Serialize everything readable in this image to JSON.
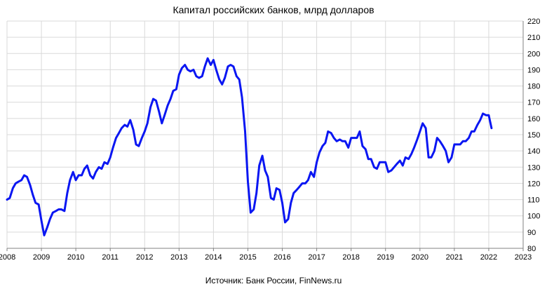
{
  "chart_data": {
    "type": "line",
    "title": "Капитал российских банков, млрд долларов",
    "source": "Источник: Банк России, FinNews.ru",
    "xlabel": "",
    "ylabel": "",
    "xlim": [
      2008,
      2023
    ],
    "ylim": [
      80,
      220
    ],
    "x_ticks": [
      "2008",
      "2009",
      "2010",
      "2011",
      "2012",
      "2013",
      "2014",
      "2015",
      "2016",
      "2017",
      "2018",
      "2019",
      "2020",
      "2021",
      "2022",
      "2023"
    ],
    "y_ticks": [
      "80",
      "90",
      "100",
      "110",
      "120",
      "130",
      "140",
      "150",
      "160",
      "170",
      "180",
      "190",
      "200",
      "210",
      "220"
    ],
    "grid": true,
    "legend": "none",
    "series": [
      {
        "color": "#0a16f2",
        "points": [
          [
            2008.0,
            110
          ],
          [
            2008.08,
            111
          ],
          [
            2008.17,
            117
          ],
          [
            2008.25,
            120
          ],
          [
            2008.33,
            121
          ],
          [
            2008.42,
            122
          ],
          [
            2008.5,
            125
          ],
          [
            2008.58,
            124
          ],
          [
            2008.67,
            119
          ],
          [
            2008.75,
            113
          ],
          [
            2008.83,
            108
          ],
          [
            2008.92,
            107
          ],
          [
            2009.0,
            97
          ],
          [
            2009.08,
            88
          ],
          [
            2009.17,
            93
          ],
          [
            2009.25,
            98
          ],
          [
            2009.33,
            102
          ],
          [
            2009.42,
            103
          ],
          [
            2009.5,
            104
          ],
          [
            2009.58,
            104
          ],
          [
            2009.67,
            103
          ],
          [
            2009.75,
            114
          ],
          [
            2009.83,
            122
          ],
          [
            2009.92,
            127
          ],
          [
            2010.0,
            122
          ],
          [
            2010.08,
            125
          ],
          [
            2010.17,
            125
          ],
          [
            2010.25,
            129
          ],
          [
            2010.33,
            131
          ],
          [
            2010.42,
            125
          ],
          [
            2010.5,
            123
          ],
          [
            2010.58,
            127
          ],
          [
            2010.67,
            130
          ],
          [
            2010.75,
            129
          ],
          [
            2010.83,
            133
          ],
          [
            2010.92,
            132
          ],
          [
            2011.0,
            136
          ],
          [
            2011.08,
            142
          ],
          [
            2011.17,
            148
          ],
          [
            2011.25,
            151
          ],
          [
            2011.33,
            154
          ],
          [
            2011.42,
            156
          ],
          [
            2011.5,
            155
          ],
          [
            2011.58,
            159
          ],
          [
            2011.67,
            153
          ],
          [
            2011.75,
            144
          ],
          [
            2011.83,
            143
          ],
          [
            2011.92,
            148
          ],
          [
            2012.0,
            152
          ],
          [
            2012.08,
            157
          ],
          [
            2012.17,
            167
          ],
          [
            2012.25,
            172
          ],
          [
            2012.33,
            171
          ],
          [
            2012.42,
            164
          ],
          [
            2012.5,
            157
          ],
          [
            2012.58,
            162
          ],
          [
            2012.67,
            168
          ],
          [
            2012.75,
            172
          ],
          [
            2012.83,
            177
          ],
          [
            2012.92,
            178
          ],
          [
            2013.0,
            187
          ],
          [
            2013.08,
            191
          ],
          [
            2013.17,
            193
          ],
          [
            2013.25,
            190
          ],
          [
            2013.33,
            189
          ],
          [
            2013.42,
            190
          ],
          [
            2013.5,
            186
          ],
          [
            2013.58,
            185
          ],
          [
            2013.67,
            186
          ],
          [
            2013.75,
            192
          ],
          [
            2013.83,
            197
          ],
          [
            2013.92,
            193
          ],
          [
            2014.0,
            196
          ],
          [
            2014.08,
            190
          ],
          [
            2014.17,
            184
          ],
          [
            2014.25,
            181
          ],
          [
            2014.33,
            185
          ],
          [
            2014.42,
            192
          ],
          [
            2014.5,
            193
          ],
          [
            2014.58,
            192
          ],
          [
            2014.67,
            186
          ],
          [
            2014.75,
            184
          ],
          [
            2014.83,
            173
          ],
          [
            2014.92,
            152
          ],
          [
            2015.0,
            121
          ],
          [
            2015.08,
            102
          ],
          [
            2015.17,
            104
          ],
          [
            2015.25,
            114
          ],
          [
            2015.33,
            131
          ],
          [
            2015.42,
            137
          ],
          [
            2015.5,
            128
          ],
          [
            2015.58,
            124
          ],
          [
            2015.67,
            111
          ],
          [
            2015.75,
            110
          ],
          [
            2015.83,
            117
          ],
          [
            2015.92,
            116
          ],
          [
            2016.0,
            108
          ],
          [
            2016.08,
            96
          ],
          [
            2016.17,
            98
          ],
          [
            2016.25,
            108
          ],
          [
            2016.33,
            114
          ],
          [
            2016.42,
            116
          ],
          [
            2016.5,
            118
          ],
          [
            2016.58,
            120
          ],
          [
            2016.67,
            120
          ],
          [
            2016.75,
            122
          ],
          [
            2016.83,
            127
          ],
          [
            2016.92,
            124
          ],
          [
            2017.0,
            133
          ],
          [
            2017.08,
            139
          ],
          [
            2017.17,
            143
          ],
          [
            2017.25,
            145
          ],
          [
            2017.33,
            152
          ],
          [
            2017.42,
            151
          ],
          [
            2017.5,
            148
          ],
          [
            2017.58,
            146
          ],
          [
            2017.67,
            147
          ],
          [
            2017.75,
            146
          ],
          [
            2017.83,
            146
          ],
          [
            2017.92,
            142
          ],
          [
            2018.0,
            148
          ],
          [
            2018.08,
            148
          ],
          [
            2018.17,
            148
          ],
          [
            2018.25,
            152
          ],
          [
            2018.33,
            143
          ],
          [
            2018.42,
            141
          ],
          [
            2018.5,
            135
          ],
          [
            2018.58,
            135
          ],
          [
            2018.67,
            130
          ],
          [
            2018.75,
            129
          ],
          [
            2018.83,
            133
          ],
          [
            2018.92,
            133
          ],
          [
            2019.0,
            133
          ],
          [
            2019.08,
            127
          ],
          [
            2019.17,
            128
          ],
          [
            2019.25,
            130
          ],
          [
            2019.33,
            132
          ],
          [
            2019.42,
            134
          ],
          [
            2019.5,
            131
          ],
          [
            2019.58,
            136
          ],
          [
            2019.67,
            135
          ],
          [
            2019.75,
            138
          ],
          [
            2019.83,
            142
          ],
          [
            2019.92,
            147
          ],
          [
            2020.0,
            152
          ],
          [
            2020.08,
            157
          ],
          [
            2020.17,
            154
          ],
          [
            2020.25,
            136
          ],
          [
            2020.33,
            136
          ],
          [
            2020.42,
            140
          ],
          [
            2020.5,
            148
          ],
          [
            2020.58,
            146
          ],
          [
            2020.67,
            143
          ],
          [
            2020.75,
            140
          ],
          [
            2020.83,
            133
          ],
          [
            2020.92,
            136
          ],
          [
            2021.0,
            144
          ],
          [
            2021.08,
            144
          ],
          [
            2021.17,
            144
          ],
          [
            2021.25,
            146
          ],
          [
            2021.33,
            146
          ],
          [
            2021.42,
            148
          ],
          [
            2021.5,
            152
          ],
          [
            2021.58,
            152
          ],
          [
            2021.67,
            156
          ],
          [
            2021.75,
            159
          ],
          [
            2021.83,
            163
          ],
          [
            2021.92,
            162
          ],
          [
            2022.0,
            162
          ],
          [
            2022.08,
            154
          ]
        ]
      }
    ]
  }
}
